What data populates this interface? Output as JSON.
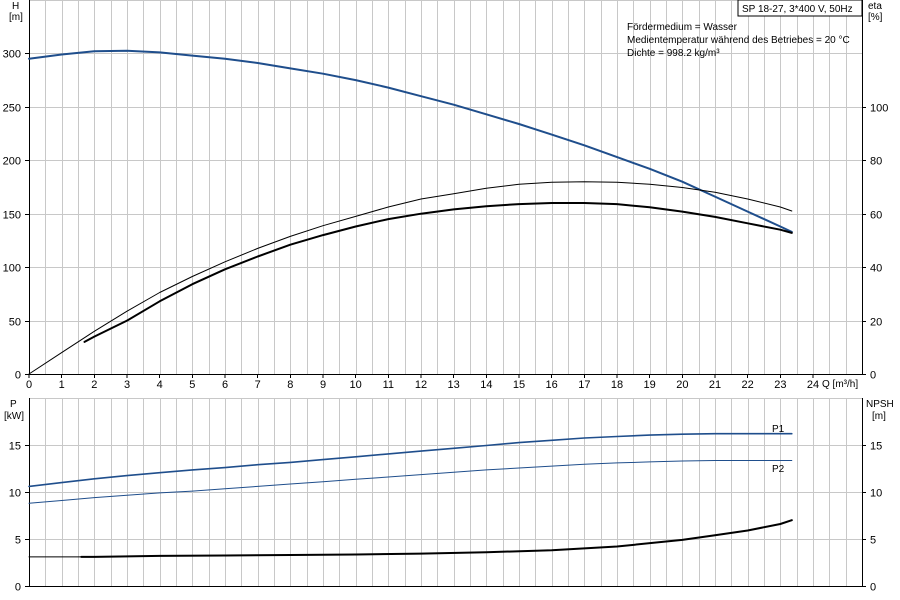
{
  "header": {
    "pump": "SP 18-27, 3*400 V, 50Hz",
    "info_lines": [
      "Fördermedium = Wasser",
      "Medientemperatur während des Betriebes = 20 °C",
      "Dichte = 998.2 kg/m³"
    ]
  },
  "colors": {
    "blue": "#1f4e8c",
    "black": "#000000",
    "grid": "#c8c8c8"
  },
  "chart_data": [
    {
      "type": "line",
      "title": "",
      "xlabel": "Q [m³/h]",
      "x_ticks": [
        0,
        1,
        2,
        3,
        4,
        5,
        6,
        7,
        8,
        9,
        10,
        11,
        12,
        13,
        14,
        15,
        16,
        17,
        18,
        19,
        20,
        21,
        22,
        23,
        24
      ],
      "xlim": [
        0,
        25.5
      ],
      "left_axis": {
        "label_line1": "H",
        "label_line2": "[m]",
        "ylim": [
          0,
          350
        ],
        "ticks": [
          0,
          50,
          100,
          150,
          200,
          250,
          300
        ]
      },
      "right_axis": {
        "label_line1": "eta",
        "label_line2": "[%]",
        "ylim": [
          0,
          140
        ],
        "ticks": [
          0,
          20,
          40,
          60,
          80,
          100
        ]
      },
      "series": [
        {
          "name": "",
          "axis": "left",
          "color": "#1f4e8c",
          "width": 2,
          "x": [
            0,
            1,
            2,
            3,
            4,
            5,
            6,
            7,
            8,
            9,
            10,
            11,
            12,
            13,
            14,
            15,
            16,
            17,
            18,
            19,
            20,
            21,
            22,
            23,
            23.35
          ],
          "y": [
            295,
            299,
            302,
            302.5,
            301,
            298,
            295,
            291,
            286,
            281,
            275,
            268,
            260,
            252,
            243,
            234,
            224,
            214,
            203,
            192,
            180,
            166,
            152,
            138,
            133
          ]
        },
        {
          "name": "",
          "axis": "right",
          "color": "#000000",
          "width": 1,
          "x": [
            0,
            1,
            2,
            3,
            4,
            5,
            6,
            7,
            8,
            9,
            10,
            11,
            12,
            13,
            14,
            15,
            16,
            17,
            18,
            19,
            20,
            21,
            22,
            23,
            23.35
          ],
          "y": [
            0,
            8,
            16,
            23.5,
            30.5,
            36.5,
            42,
            47,
            51.5,
            55.5,
            59,
            62.5,
            65.5,
            67.5,
            69.5,
            71,
            71.8,
            72,
            71.8,
            71,
            69.8,
            68,
            65.5,
            62.5,
            61
          ]
        },
        {
          "name": "",
          "axis": "left",
          "color": "#000000",
          "width": 2,
          "x": [
            1.7,
            2,
            3,
            4,
            5,
            6,
            7,
            8,
            9,
            10,
            11,
            12,
            13,
            14,
            15,
            16,
            17,
            18,
            19,
            20,
            21,
            22,
            23,
            23.35
          ],
          "y": [
            30,
            35,
            50,
            68,
            84,
            98,
            110,
            121,
            130,
            138,
            145,
            150,
            154,
            157,
            159,
            160,
            160,
            159,
            156,
            152,
            147,
            141,
            135,
            132
          ]
        }
      ]
    },
    {
      "type": "line",
      "title": "",
      "xlim": [
        0,
        25.5
      ],
      "left_axis": {
        "label_line1": "P",
        "label_line2": "[kW]",
        "ylim": [
          0,
          20
        ],
        "ticks": [
          0,
          5,
          10,
          15
        ]
      },
      "right_axis": {
        "label_line1": "NPSH",
        "label_line2": "[m]",
        "ylim": [
          0,
          20
        ],
        "ticks": [
          0,
          5,
          10,
          15
        ]
      },
      "series": [
        {
          "name": "P1",
          "axis": "left",
          "color": "#1f4e8c",
          "width": 1.6,
          "x": [
            0,
            1,
            2,
            3,
            4,
            5,
            6,
            7,
            8,
            9,
            10,
            11,
            12,
            13,
            14,
            15,
            16,
            17,
            18,
            19,
            20,
            21,
            22,
            23,
            23.35
          ],
          "y": [
            10.6,
            11,
            11.4,
            11.75,
            12.05,
            12.35,
            12.6,
            12.9,
            13.15,
            13.45,
            13.75,
            14.05,
            14.35,
            14.65,
            14.95,
            15.25,
            15.5,
            15.75,
            15.9,
            16.05,
            16.15,
            16.2,
            16.2,
            16.2,
            16.2
          ]
        },
        {
          "name": "P2",
          "axis": "left",
          "color": "#1f4e8c",
          "width": 1,
          "x": [
            0,
            1,
            2,
            3,
            4,
            5,
            6,
            7,
            8,
            9,
            10,
            11,
            12,
            13,
            14,
            15,
            16,
            17,
            18,
            19,
            20,
            21,
            22,
            23,
            23.35
          ],
          "y": [
            8.8,
            9.1,
            9.4,
            9.65,
            9.9,
            10.1,
            10.35,
            10.6,
            10.85,
            11.1,
            11.35,
            11.6,
            11.85,
            12.1,
            12.35,
            12.55,
            12.75,
            12.95,
            13.1,
            13.2,
            13.3,
            13.35,
            13.35,
            13.35,
            13.35
          ]
        },
        {
          "name": "",
          "axis": "right",
          "color": "#000000",
          "width": 2,
          "x": [
            1.6,
            2,
            4,
            6,
            8,
            10,
            12,
            14,
            16,
            18,
            20,
            21,
            22,
            23,
            23.35
          ],
          "y": [
            3.1,
            3.1,
            3.2,
            3.25,
            3.3,
            3.35,
            3.45,
            3.6,
            3.8,
            4.2,
            4.9,
            5.4,
            5.9,
            6.6,
            7.0
          ]
        },
        {
          "name": "",
          "axis": "right",
          "color": "#000000",
          "width": 1,
          "x": [
            0,
            1.6
          ],
          "y": [
            3.1,
            3.1
          ]
        }
      ]
    }
  ]
}
